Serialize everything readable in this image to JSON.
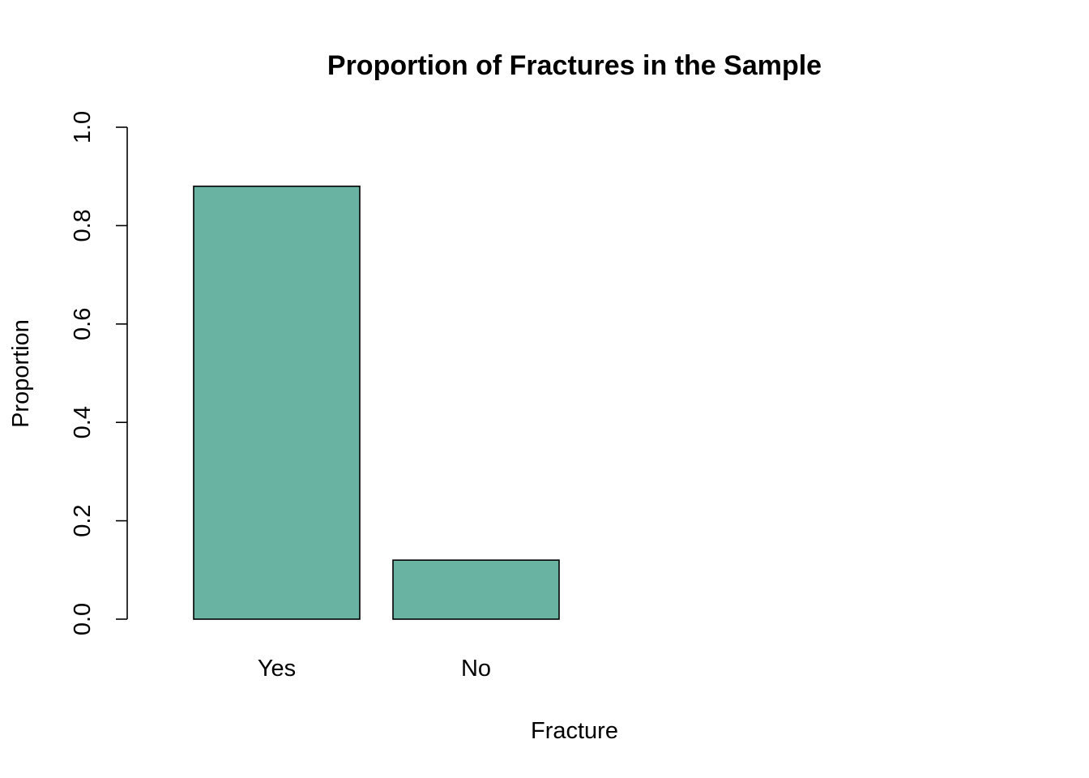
{
  "chart_data": {
    "type": "bar",
    "title": "Proportion of Fractures in the Sample",
    "xlabel": "Fracture",
    "ylabel": "Proportion",
    "categories": [
      "Yes",
      "No"
    ],
    "values": [
      0.88,
      0.12
    ],
    "ylim": [
      0,
      1
    ],
    "yticks": [
      0.0,
      0.2,
      0.4,
      0.6,
      0.8,
      1.0
    ],
    "ytick_labels": [
      "0.0",
      "0.2",
      "0.4",
      "0.6",
      "0.8",
      "1.0"
    ],
    "bar_color": "#69b3a2",
    "grid": false,
    "legend": "none"
  }
}
